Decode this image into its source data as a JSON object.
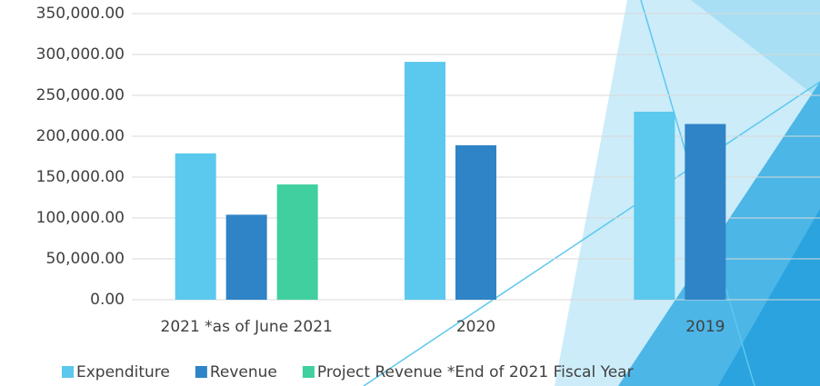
{
  "chart_data": {
    "type": "bar",
    "categories": [
      "2021 *as of June 2021",
      "2020",
      "2019"
    ],
    "series": [
      {
        "name": "Expenditure",
        "color": "#5bc8ee",
        "values": [
          179000,
          291000,
          230000
        ]
      },
      {
        "name": "Revenue",
        "color": "#2e84c6",
        "values": [
          104000,
          189000,
          215000
        ]
      },
      {
        "name": "Project Revenue *End of 2021 Fiscal Year",
        "color": "#40cf9f",
        "values": [
          141000,
          null,
          null
        ]
      }
    ],
    "ylim": [
      0,
      350000
    ],
    "yticks": [
      {
        "value": 0,
        "label": "0.00"
      },
      {
        "value": 50000,
        "label": "50,000.00"
      },
      {
        "value": 100000,
        "label": "100,000.00"
      },
      {
        "value": 150000,
        "label": "150,000.00"
      },
      {
        "value": 200000,
        "label": "200,000.00"
      },
      {
        "value": 250000,
        "label": "250,000.00"
      },
      {
        "value": 300000,
        "label": "300,000.00"
      },
      {
        "value": 350000,
        "label": "350,000.00"
      }
    ],
    "grid": true
  }
}
